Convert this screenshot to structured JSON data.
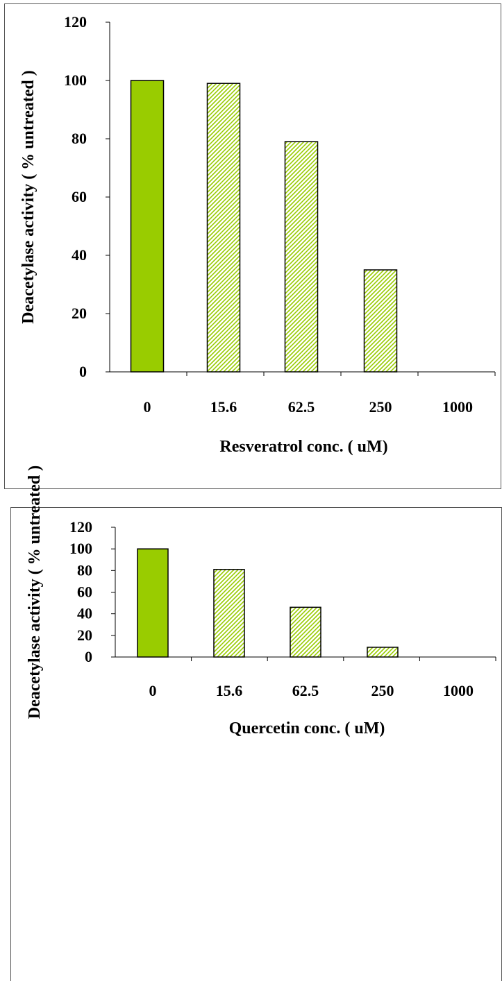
{
  "colors": {
    "solid_bar": "#99cc00",
    "hatch_line": "#99cc00",
    "bar_outline": "#000000",
    "axis": "#000000"
  },
  "chart_data": [
    {
      "type": "bar",
      "xlabel": "Resveratrol conc. ( uM)",
      "ylabel": "Deacetylase activity ( % untreated )",
      "categories": [
        "0",
        "15.6",
        "62.5",
        "250",
        "1000"
      ],
      "values": [
        100,
        99,
        79,
        35,
        0
      ],
      "fills": [
        "solid",
        "hatched",
        "hatched",
        "hatched",
        "hatched"
      ],
      "yticks": [
        "0",
        "20",
        "40",
        "60",
        "80",
        "100",
        "120"
      ],
      "ylim": [
        0,
        120
      ],
      "grid": false,
      "legend": "none"
    },
    {
      "type": "bar",
      "xlabel": "Quercetin conc. ( uM)",
      "ylabel": "Deacetylase activity ( % untreated )",
      "categories": [
        "0",
        "15.6",
        "62.5",
        "250",
        "1000"
      ],
      "values": [
        100,
        81,
        46,
        9,
        0
      ],
      "fills": [
        "solid",
        "hatched",
        "hatched",
        "hatched",
        "hatched"
      ],
      "yticks": [
        "0",
        "20",
        "40",
        "60",
        "80",
        "100",
        "120"
      ],
      "ylim": [
        0,
        120
      ],
      "grid": false,
      "legend": "none"
    }
  ]
}
